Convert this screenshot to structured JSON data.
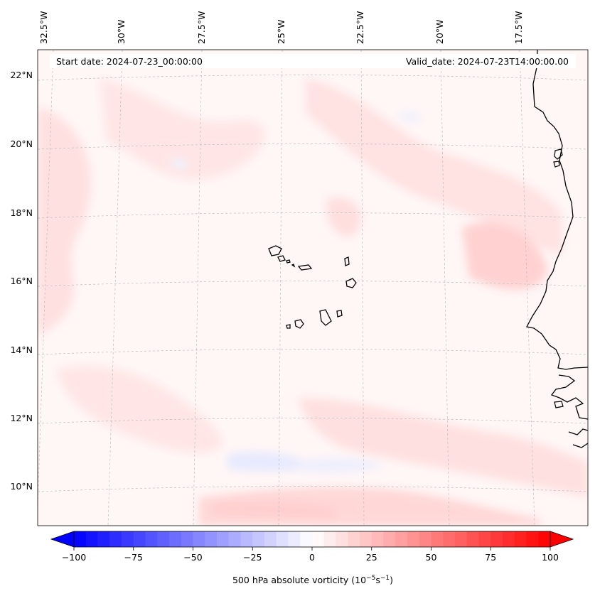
{
  "annotations": {
    "start": "Start date: 2024-07-23_00:00:00",
    "valid": "Valid_date: 2024-07-23T14:00:00.00"
  },
  "map": {
    "lon_labels": [
      "32.5°W",
      "30°W",
      "27.5°W",
      "25°W",
      "22.5°W",
      "20°W",
      "17.5°W"
    ],
    "lat_labels": [
      "22°N",
      "20°N",
      "18°N",
      "16°N",
      "14°N",
      "12°N",
      "10°N"
    ],
    "colors": {
      "coast": "#000000",
      "grid": "#bdbdbd",
      "background": "#fff6f6"
    }
  },
  "colorbar": {
    "label_prefix": "500 hPa absolute vorticity (10",
    "label_exp1": "−5",
    "label_mid": "s",
    "label_exp2": "−1",
    "label_suffix": ")",
    "tick_labels": [
      "−100",
      "−75",
      "−50",
      "−25",
      "0",
      "25",
      "50",
      "75",
      "100"
    ],
    "range": [
      -100,
      100
    ],
    "step": 5,
    "colors": {
      "negative_end": "#0000ff",
      "positive_end": "#ff0000",
      "neutral": "#ffffff"
    }
  }
}
